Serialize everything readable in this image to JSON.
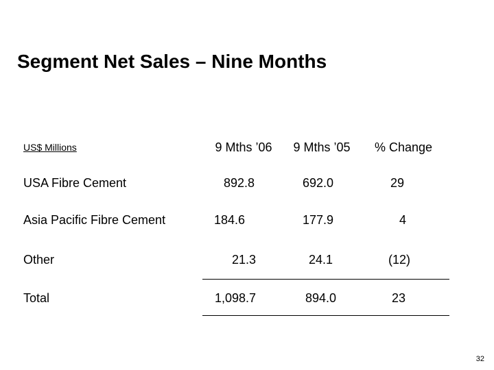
{
  "slide": {
    "title": "Segment Net Sales – Nine Months",
    "unit_label": "US$ Millions",
    "page_number": "32"
  },
  "table": {
    "columns": [
      "9 Mths ’06",
      "9 Mths ’05",
      "% Change"
    ],
    "rows": [
      {
        "label": "USA Fibre Cement",
        "values": [
          "892.8",
          "692.0",
          "29"
        ]
      },
      {
        "label": "Asia Pacific Fibre Cement",
        "values": [
          "184.6",
          "177.9",
          "4"
        ]
      },
      {
        "label": "Other",
        "values": [
          "21.3",
          "24.1",
          "(12)"
        ]
      },
      {
        "label": "Total",
        "values": [
          "1,098.7",
          "894.0",
          "23"
        ]
      }
    ]
  }
}
